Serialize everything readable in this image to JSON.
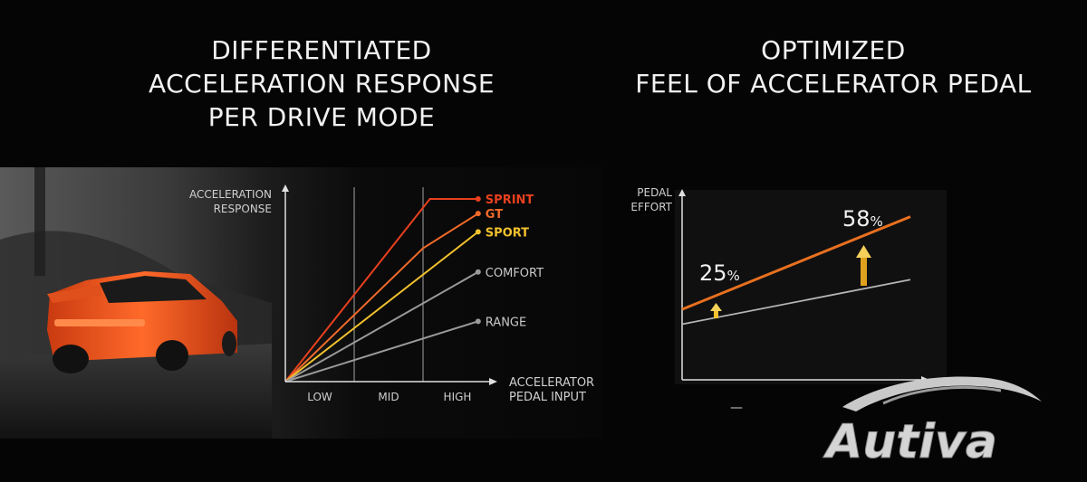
{
  "left_title": "DIFFERENTIATED\nACCELERATION RESPONSE\nPER DRIVE MODE",
  "right_title": "OPTIMIZED\nFEEL OF ACCELERATOR PEDAL",
  "brand": "Autiva",
  "chart_data": [
    {
      "type": "line",
      "ylabel": [
        "ACCELERATION",
        "RESPONSE"
      ],
      "xlabel": [
        "ACCELERATOR",
        "PEDAL INPUT"
      ],
      "categories": [
        "LOW",
        "MID",
        "HIGH"
      ],
      "xlim": [
        0,
        3
      ],
      "ylim": [
        0,
        1
      ],
      "grid": "vertical lines at MID and HIGH",
      "series": [
        {
          "name": "SPRINT",
          "color": "#e8401e",
          "x": [
            0,
            2.1,
            2.8
          ],
          "y": [
            0,
            1.0,
            1.0
          ]
        },
        {
          "name": "GT",
          "color": "#f06a2a",
          "x": [
            0,
            2.0,
            2.8
          ],
          "y": [
            0,
            0.73,
            0.92
          ]
        },
        {
          "name": "SPORT",
          "color": "#f2c12e",
          "x": [
            0,
            2.8
          ],
          "y": [
            0,
            0.82
          ]
        },
        {
          "name": "COMFORT",
          "color": "#9a9a9a",
          "x": [
            0,
            2.8
          ],
          "y": [
            0,
            0.6
          ]
        },
        {
          "name": "RANGE",
          "color": "#9a9a9a",
          "x": [
            0,
            2.8
          ],
          "y": [
            0,
            0.33
          ]
        }
      ]
    },
    {
      "type": "line",
      "ylabel": [
        "PEDAL",
        "EFFORT"
      ],
      "xlabel": "",
      "x_tick": "—",
      "xlim": [
        0,
        1
      ],
      "ylim": [
        0,
        1
      ],
      "series": [
        {
          "color": "#e8701f",
          "x": [
            0,
            1
          ],
          "y": [
            0.38,
            0.88
          ]
        },
        {
          "color": "#b5b5b5",
          "x": [
            0,
            1
          ],
          "y": [
            0.3,
            0.54
          ]
        }
      ],
      "annotations": [
        {
          "text": "25",
          "unit": "%"
        },
        {
          "text": "58",
          "unit": "%"
        }
      ]
    }
  ]
}
